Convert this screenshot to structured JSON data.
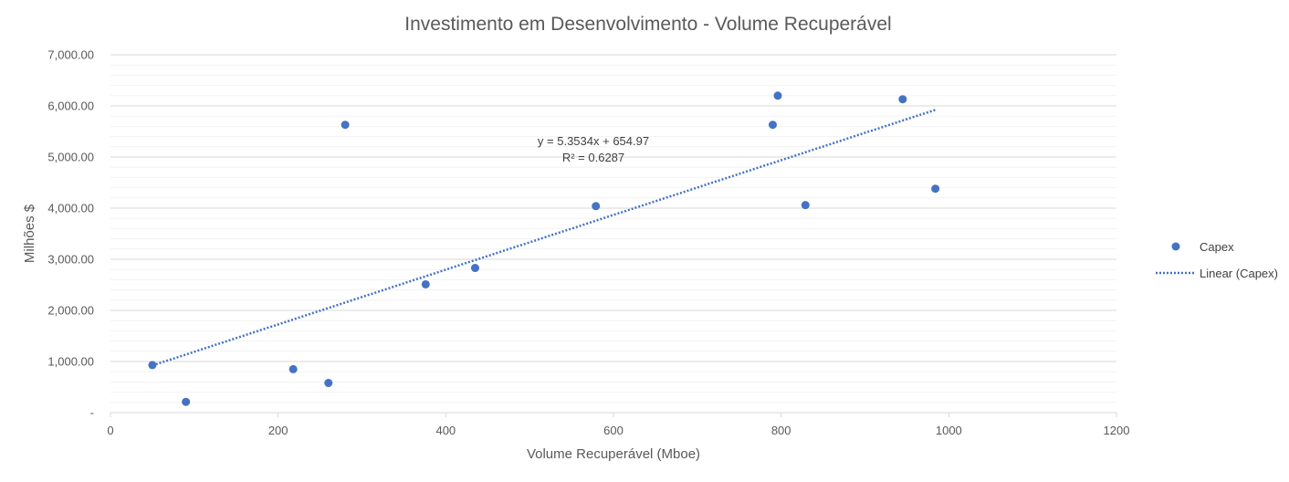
{
  "chart_data": {
    "type": "scatter",
    "title": "Investimento em Desenvolvimento - Volume Recuperável",
    "xlabel": "Volume Recuperável (Mboe)",
    "ylabel": "Milhões $",
    "xlim": [
      0,
      1200
    ],
    "ylim": [
      0,
      7000
    ],
    "x_ticks": [
      0,
      200,
      400,
      600,
      800,
      1000,
      1200
    ],
    "x_tick_labels": [
      "0",
      "200",
      "400",
      "600",
      "800",
      "1000",
      "1200"
    ],
    "y_ticks": [
      0,
      1000,
      2000,
      3000,
      4000,
      5000,
      6000,
      7000
    ],
    "y_tick_labels": [
      "-",
      "1,000.00",
      "2,000.00",
      "3,000.00",
      "4,000.00",
      "5,000.00",
      "6,000.00",
      "7,000.00"
    ],
    "major_gridlines": true,
    "minor_gridlines": true,
    "legend_position": "right",
    "series": [
      {
        "name": "Capex",
        "color": "#4472C4",
        "points": [
          {
            "x": 50,
            "y": 930
          },
          {
            "x": 90,
            "y": 210
          },
          {
            "x": 218,
            "y": 850
          },
          {
            "x": 260,
            "y": 580
          },
          {
            "x": 280,
            "y": 5630
          },
          {
            "x": 376,
            "y": 2510
          },
          {
            "x": 435,
            "y": 2830
          },
          {
            "x": 579,
            "y": 4040
          },
          {
            "x": 790,
            "y": 5630
          },
          {
            "x": 796,
            "y": 6200
          },
          {
            "x": 829,
            "y": 4060
          },
          {
            "x": 945,
            "y": 6130
          },
          {
            "x": 984,
            "y": 4380
          }
        ]
      }
    ],
    "trendline": {
      "name": "Linear (Capex)",
      "type": "linear",
      "slope": 5.3534,
      "intercept": 654.97,
      "x_range": [
        50,
        984
      ],
      "color": "#4472C4",
      "equation_label": "y = 5.3534x + 654.97",
      "r2_label": "R² = 0.6287"
    }
  }
}
